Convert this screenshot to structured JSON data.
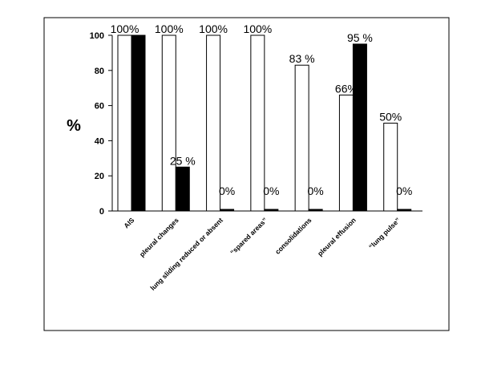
{
  "chart_data": {
    "type": "bar",
    "ylabel": "%",
    "ylim": [
      0,
      100
    ],
    "yticks": [
      0,
      20,
      40,
      60,
      80,
      100
    ],
    "grid": false,
    "legend": "none",
    "categories": [
      "AIS",
      "pleural changes",
      "lung sliding reduced  or absent",
      "“spared areas”",
      "consolidations",
      "pleural effusion",
      "“lung pulse”"
    ],
    "series": [
      {
        "color": "#ffffff",
        "values": [
          100,
          100,
          100,
          100,
          83,
          66,
          50
        ],
        "labels": [
          "100%",
          "100%",
          "100%",
          "100%",
          "83 %",
          "66%",
          "50%"
        ]
      },
      {
        "color": "#000000",
        "values": [
          100,
          25,
          0,
          0,
          0,
          95,
          0
        ],
        "labels": [
          "",
          "25 %",
          "0%",
          "0%",
          "0%",
          "95 %",
          "0%"
        ]
      }
    ]
  }
}
